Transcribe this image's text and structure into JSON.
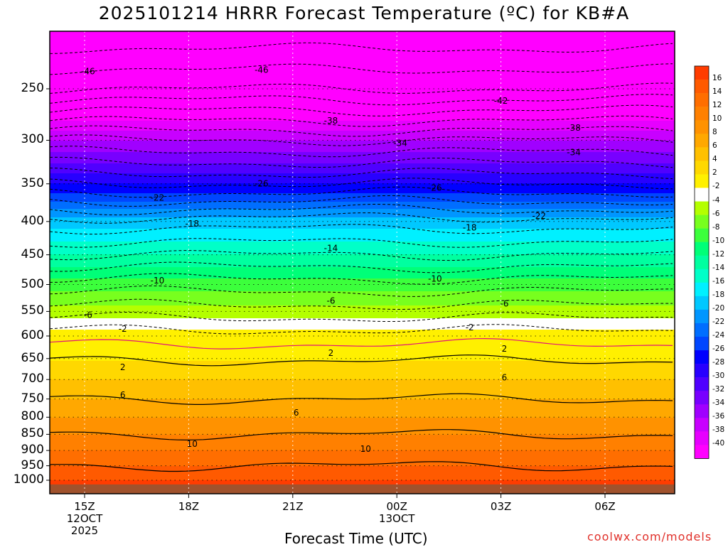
{
  "title": "2025101214 HRRR Forecast Temperature (ºC) for KB#A",
  "xlabel": "Forecast Time (UTC)",
  "credit": "coolwx.com/models",
  "chart_data": {
    "type": "heatmap",
    "title": "2025101214 HRRR Forecast Temperature (ºC) for KB#A",
    "xlabel": "Forecast Time (UTC)",
    "ylabel": "",
    "x_ticks": [
      {
        "label": "15Z",
        "sub1": "12OCT",
        "sub2": "2025",
        "hour": 15
      },
      {
        "label": "18Z",
        "sub1": "",
        "sub2": "",
        "hour": 18
      },
      {
        "label": "21Z",
        "sub1": "",
        "sub2": "",
        "hour": 21
      },
      {
        "label": "00Z",
        "sub1": "13OCT",
        "sub2": "",
        "hour": 24
      },
      {
        "label": "03Z",
        "sub1": "",
        "sub2": "",
        "hour": 27
      },
      {
        "label": "06Z",
        "sub1": "",
        "sub2": "",
        "hour": 30
      }
    ],
    "x_range_hours": [
      14,
      32
    ],
    "y_ticks": [
      250,
      300,
      350,
      400,
      450,
      500,
      550,
      600,
      650,
      700,
      750,
      800,
      850,
      900,
      950,
      1000
    ],
    "y_range_hPa": [
      200,
      1020
    ],
    "y_scale": "log (pressure)",
    "grid": true,
    "colorbar_ticks": [
      16,
      14,
      12,
      10,
      8,
      6,
      4,
      2,
      -2,
      -4,
      -6,
      -8,
      -10,
      -12,
      -14,
      -16,
      -18,
      -20,
      -22,
      -24,
      -26,
      -28,
      -30,
      -32,
      -34,
      -36,
      -38,
      -40
    ],
    "colorbar_colors": [
      "#ff3c00",
      "#ff5a00",
      "#ff6e00",
      "#ff8000",
      "#ff9200",
      "#ffa800",
      "#ffc000",
      "#ffd800",
      "#fff000",
      "#ffffff",
      "#b4ff00",
      "#78ff1e",
      "#3cff3c",
      "#00ff78",
      "#00ffa0",
      "#00ffc8",
      "#00f0ff",
      "#00c8ff",
      "#0096ff",
      "#006eff",
      "#0046ff",
      "#0000ff",
      "#2800ff",
      "#5000ff",
      "#7800ff",
      "#a000ff",
      "#c800ff",
      "#e600ff",
      "#ff00ff"
    ],
    "contour_labels": [
      {
        "text": "-46",
        "hour": 15.1,
        "hpa": 235
      },
      {
        "text": "-46",
        "hour": 20.1,
        "hpa": 234
      },
      {
        "text": "-42",
        "hour": 27.0,
        "hpa": 261
      },
      {
        "text": "-38",
        "hour": 22.1,
        "hpa": 280
      },
      {
        "text": "-38",
        "hour": 29.1,
        "hpa": 287
      },
      {
        "text": "-34",
        "hour": 24.1,
        "hpa": 303
      },
      {
        "text": "-34",
        "hour": 29.1,
        "hpa": 313
      },
      {
        "text": "-26",
        "hour": 20.1,
        "hpa": 350
      },
      {
        "text": "-26",
        "hour": 25.1,
        "hpa": 355
      },
      {
        "text": "-22",
        "hour": 17.1,
        "hpa": 368
      },
      {
        "text": "-22",
        "hour": 28.1,
        "hpa": 392
      },
      {
        "text": "-18",
        "hour": 18.1,
        "hpa": 403
      },
      {
        "text": "-18",
        "hour": 26.1,
        "hpa": 409
      },
      {
        "text": "-14",
        "hour": 22.1,
        "hpa": 440
      },
      {
        "text": "-10",
        "hour": 17.1,
        "hpa": 493
      },
      {
        "text": "-10",
        "hour": 25.1,
        "hpa": 490
      },
      {
        "text": "-6",
        "hour": 22.1,
        "hpa": 530
      },
      {
        "text": "-6",
        "hour": 27.1,
        "hpa": 535
      },
      {
        "text": "-6",
        "hour": 15.1,
        "hpa": 557
      },
      {
        "text": "-2",
        "hour": 16.1,
        "hpa": 585
      },
      {
        "text": "-2",
        "hour": 26.1,
        "hpa": 582
      },
      {
        "text": "2",
        "hour": 22.1,
        "hpa": 637
      },
      {
        "text": "2",
        "hour": 27.1,
        "hpa": 628
      },
      {
        "text": "2",
        "hour": 16.1,
        "hpa": 670
      },
      {
        "text": "6",
        "hour": 27.1,
        "hpa": 695
      },
      {
        "text": "6",
        "hour": 16.1,
        "hpa": 739
      },
      {
        "text": "6",
        "hour": 21.1,
        "hpa": 787
      },
      {
        "text": "10",
        "hour": 18.1,
        "hpa": 880
      },
      {
        "text": "10",
        "hour": 23.1,
        "hpa": 895
      }
    ]
  }
}
